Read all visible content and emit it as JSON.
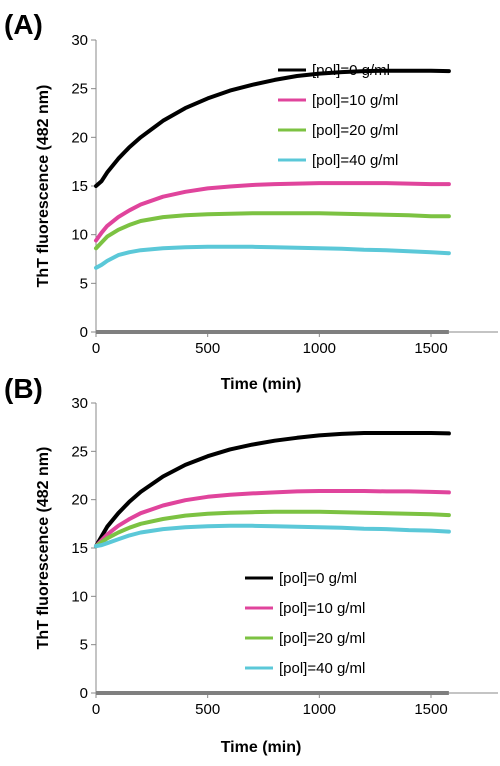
{
  "chart_data": [
    {
      "type": "line",
      "panel_label": "(A)",
      "xlabel": "Time (min)",
      "ylabel": "ThT fluorescence (482 nm)",
      "xlim": [
        0,
        1800
      ],
      "ylim": [
        0,
        30
      ],
      "xticks": [
        0,
        500,
        1000,
        1500
      ],
      "yticks": [
        0,
        5,
        10,
        15,
        20,
        25,
        30
      ],
      "grid": false,
      "legend_position": "right",
      "baseline": {
        "value": 0,
        "color": "#7f7f7f"
      },
      "series": [
        {
          "name": "[pol]=0 \u001fg/ml",
          "color": "#000000",
          "x": [
            0,
            25,
            50,
            100,
            150,
            200,
            300,
            400,
            500,
            600,
            700,
            800,
            900,
            1000,
            1100,
            1200,
            1300,
            1400,
            1500,
            1580
          ],
          "y": [
            15.0,
            15.5,
            16.4,
            17.8,
            19.0,
            20.0,
            21.7,
            23.0,
            24.0,
            24.8,
            25.4,
            25.9,
            26.3,
            26.55,
            26.7,
            26.8,
            26.85,
            26.85,
            26.85,
            26.8
          ]
        },
        {
          "name": "[pol]=10 \u001fg/ml",
          "color": "#e0449c",
          "x": [
            0,
            25,
            50,
            100,
            150,
            200,
            300,
            400,
            500,
            600,
            700,
            800,
            900,
            1000,
            1100,
            1200,
            1300,
            1400,
            1500,
            1580
          ],
          "y": [
            9.4,
            10.2,
            10.9,
            11.8,
            12.5,
            13.1,
            13.9,
            14.4,
            14.75,
            14.95,
            15.1,
            15.2,
            15.25,
            15.3,
            15.3,
            15.3,
            15.3,
            15.25,
            15.2,
            15.2
          ]
        },
        {
          "name": "[pol]=20 \u001fg/ml",
          "color": "#7cc242",
          "x": [
            0,
            25,
            50,
            100,
            150,
            200,
            300,
            400,
            500,
            600,
            700,
            800,
            900,
            1000,
            1100,
            1200,
            1300,
            1400,
            1500,
            1580
          ],
          "y": [
            8.6,
            9.2,
            9.8,
            10.5,
            11.0,
            11.4,
            11.8,
            12.0,
            12.1,
            12.15,
            12.2,
            12.2,
            12.2,
            12.2,
            12.15,
            12.1,
            12.05,
            12.0,
            11.9,
            11.9
          ]
        },
        {
          "name": "[pol]=40 \u001fg/ml",
          "color": "#5bc8d8",
          "x": [
            0,
            25,
            50,
            100,
            150,
            200,
            300,
            400,
            500,
            600,
            700,
            800,
            900,
            1000,
            1100,
            1200,
            1300,
            1400,
            1500,
            1580
          ],
          "y": [
            6.6,
            6.9,
            7.3,
            7.9,
            8.2,
            8.4,
            8.6,
            8.7,
            8.75,
            8.75,
            8.75,
            8.7,
            8.65,
            8.6,
            8.55,
            8.45,
            8.4,
            8.3,
            8.2,
            8.1
          ]
        }
      ]
    },
    {
      "type": "line",
      "panel_label": "(B)",
      "xlabel": "Time (min)",
      "ylabel": "ThT fluorescence (482 nm)",
      "xlim": [
        0,
        1800
      ],
      "ylim": [
        0,
        30
      ],
      "xticks": [
        0,
        500,
        1000,
        1500
      ],
      "yticks": [
        0,
        5,
        10,
        15,
        20,
        25,
        30
      ],
      "grid": false,
      "legend_position": "bottom-right",
      "baseline": {
        "value": 0,
        "color": "#7f7f7f"
      },
      "series": [
        {
          "name": "[pol]=0 \u001fg/ml",
          "color": "#000000",
          "x": [
            0,
            25,
            50,
            100,
            150,
            200,
            300,
            400,
            500,
            600,
            700,
            800,
            900,
            1000,
            1100,
            1200,
            1300,
            1400,
            1500,
            1580
          ],
          "y": [
            15.2,
            16.2,
            17.2,
            18.6,
            19.8,
            20.8,
            22.4,
            23.6,
            24.5,
            25.2,
            25.7,
            26.1,
            26.4,
            26.65,
            26.8,
            26.9,
            26.9,
            26.9,
            26.9,
            26.85
          ]
        },
        {
          "name": "[pol]=10 \u001fg/ml",
          "color": "#e0449c",
          "x": [
            0,
            25,
            50,
            100,
            150,
            200,
            300,
            400,
            500,
            600,
            700,
            800,
            900,
            1000,
            1100,
            1200,
            1300,
            1400,
            1500,
            1580
          ],
          "y": [
            15.2,
            15.8,
            16.4,
            17.3,
            18.0,
            18.6,
            19.4,
            19.95,
            20.3,
            20.5,
            20.65,
            20.75,
            20.85,
            20.9,
            20.9,
            20.9,
            20.85,
            20.85,
            20.8,
            20.75
          ]
        },
        {
          "name": "[pol]=20 \u001fg/ml",
          "color": "#7cc242",
          "x": [
            0,
            25,
            50,
            100,
            150,
            200,
            300,
            400,
            500,
            600,
            700,
            800,
            900,
            1000,
            1100,
            1200,
            1300,
            1400,
            1500,
            1580
          ],
          "y": [
            15.2,
            15.6,
            16.0,
            16.6,
            17.1,
            17.5,
            18.0,
            18.35,
            18.55,
            18.65,
            18.7,
            18.75,
            18.75,
            18.75,
            18.7,
            18.65,
            18.6,
            18.55,
            18.5,
            18.4
          ]
        },
        {
          "name": "[pol]=40 \u001fg/ml",
          "color": "#5bc8d8",
          "x": [
            0,
            25,
            50,
            100,
            150,
            200,
            300,
            400,
            500,
            600,
            700,
            800,
            900,
            1000,
            1100,
            1200,
            1300,
            1400,
            1500,
            1580
          ],
          "y": [
            15.2,
            15.3,
            15.5,
            15.9,
            16.3,
            16.6,
            16.95,
            17.15,
            17.25,
            17.3,
            17.3,
            17.25,
            17.2,
            17.15,
            17.1,
            17.0,
            16.95,
            16.85,
            16.8,
            16.7
          ]
        }
      ]
    }
  ]
}
